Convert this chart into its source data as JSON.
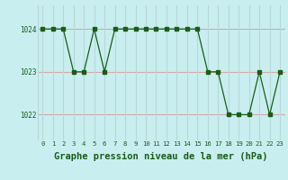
{
  "hours": [
    0,
    1,
    2,
    3,
    4,
    5,
    6,
    7,
    8,
    9,
    10,
    11,
    12,
    13,
    14,
    15,
    16,
    17,
    18,
    19,
    20,
    21,
    22,
    23
  ],
  "pressure": [
    1024,
    1024,
    1024,
    1023,
    1023,
    1024,
    1023,
    1024,
    1024,
    1024,
    1024,
    1024,
    1024,
    1024,
    1024,
    1024,
    1023,
    1023,
    1022,
    1022,
    1022,
    1023,
    1022,
    1023
  ],
  "line_color": "#1a5c1a",
  "marker_color": "#1a5c1a",
  "bg_color": "#c8eef0",
  "hgrid_color": "#d8a8a8",
  "vgrid_color": "#b8d8d8",
  "label_color": "#1a5c1a",
  "xlabel": "Graphe pression niveau de la mer (hPa)",
  "ylim": [
    1021.4,
    1024.55
  ],
  "yticks": [
    1022,
    1023,
    1024
  ],
  "xlim": [
    -0.5,
    23.5
  ],
  "label_fontsize": 7.5
}
